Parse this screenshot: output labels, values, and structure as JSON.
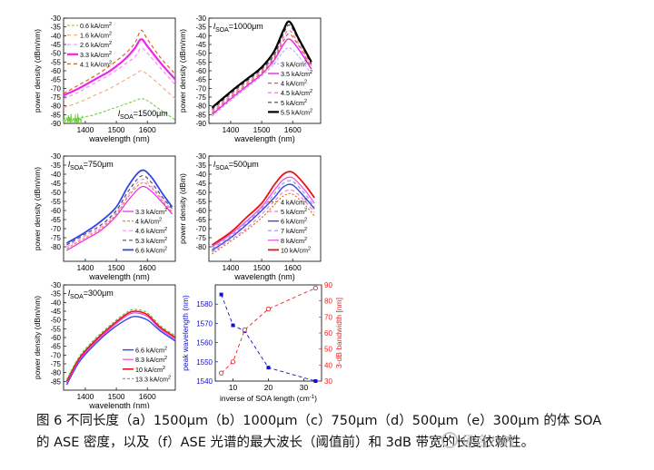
{
  "caption": {
    "line1": "图 6  不同长度（a）1500μm（b）1000μm（c）750μm（d）500μm（e）300μm 的体 SOA",
    "line2": "的 ASE 密度，以及（f）ASE 光谱的最大波长（阈值前）和 3dB 带宽的长度依赖性。"
  },
  "watermark": "见合八方",
  "chart_data": [
    {
      "id": "a",
      "type": "line",
      "label_prefix": "l",
      "label_sub": "SOA",
      "label_suffix": "=1500μm",
      "xlabel": "wavelength (nm)",
      "ylabel": "power density (dBm/nm)",
      "xlim": [
        1330,
        1690
      ],
      "ylim": [
        -90,
        -30
      ],
      "xticks": [
        1400,
        1500,
        1600
      ],
      "yticks": [
        -90,
        -85,
        -80,
        -75,
        -70,
        -65,
        -60,
        -55,
        -50,
        -45,
        -40,
        -35,
        -30
      ],
      "legend": "top-left",
      "series": [
        {
          "name": "0.6 kA/cm",
          "sup": "2",
          "color": "#66cc33",
          "dash": "3,2",
          "width": 1,
          "noisy": true,
          "x": [
            1330,
            1380,
            1430,
            1480,
            1530,
            1560,
            1580,
            1600,
            1640,
            1690
          ],
          "y": [
            -89,
            -87,
            -85,
            -82,
            -79,
            -77,
            -76,
            -77,
            -82,
            -88
          ]
        },
        {
          "name": "1.6 kA/cm",
          "sup": "2",
          "color": "#f2b084",
          "dash": "4,3",
          "width": 1.2,
          "x": [
            1330,
            1380,
            1430,
            1480,
            1530,
            1560,
            1580,
            1600,
            1640,
            1690
          ],
          "y": [
            -81,
            -78,
            -74,
            -70,
            -65,
            -62,
            -60,
            -62,
            -68,
            -76
          ]
        },
        {
          "name": "2.6 kA/cm",
          "sup": "2",
          "color": "#ff88ff",
          "dash": "4,3",
          "width": 1.2,
          "x": [
            1330,
            1380,
            1430,
            1480,
            1530,
            1560,
            1580,
            1600,
            1640,
            1690
          ],
          "y": [
            -76,
            -72,
            -67,
            -62,
            -56,
            -52,
            -47,
            -50,
            -58,
            -68
          ]
        },
        {
          "name": "3.3 kA/cm",
          "sup": "2",
          "color": "#ee22ee",
          "dash": "",
          "width": 2.2,
          "x": [
            1330,
            1380,
            1430,
            1480,
            1530,
            1560,
            1580,
            1600,
            1640,
            1690
          ],
          "y": [
            -74,
            -70,
            -65,
            -60,
            -53,
            -47,
            -42,
            -46,
            -55,
            -65
          ]
        },
        {
          "name": "4.1 kA/cm",
          "sup": "2",
          "color": "#dd6622",
          "dash": "4,3",
          "width": 1.2,
          "x": [
            1330,
            1380,
            1430,
            1480,
            1530,
            1560,
            1580,
            1600,
            1640,
            1690
          ],
          "y": [
            -73,
            -68,
            -63,
            -57,
            -50,
            -44,
            -37,
            -42,
            -52,
            -62
          ]
        }
      ]
    },
    {
      "id": "b",
      "type": "line",
      "label_prefix": "l",
      "label_sub": "SOA",
      "label_suffix": "=1000μm",
      "xlabel": "wavelength (nm)",
      "ylabel": "power density (dBm/nm)",
      "xlim": [
        1330,
        1690
      ],
      "ylim": [
        -90,
        -30
      ],
      "xticks": [
        1400,
        1500,
        1600
      ],
      "yticks": [
        -90,
        -85,
        -80,
        -75,
        -70,
        -65,
        -60,
        -55,
        -50,
        -45,
        -40,
        -35,
        -30
      ],
      "legend": "bottom-right",
      "series": [
        {
          "name": "3 kA/cm",
          "sup": "2",
          "color": "#99aaff",
          "dash": "3,2",
          "width": 1,
          "x": [
            1340,
            1400,
            1450,
            1500,
            1540,
            1570,
            1590,
            1620,
            1660
          ],
          "y": [
            -86,
            -77,
            -70,
            -63,
            -56,
            -49,
            -47,
            -52,
            -62
          ]
        },
        {
          "name": "3.5 kA/cm",
          "sup": "2",
          "color": "#ee22ee",
          "dash": "",
          "width": 1.4,
          "x": [
            1340,
            1400,
            1450,
            1500,
            1540,
            1570,
            1590,
            1620,
            1660
          ],
          "y": [
            -85,
            -76,
            -69,
            -62,
            -54,
            -45,
            -42,
            -48,
            -59
          ]
        },
        {
          "name": "4 kA/cm",
          "sup": "2",
          "color": "#dd6622",
          "dash": "4,3",
          "width": 1.2,
          "x": [
            1340,
            1400,
            1450,
            1500,
            1540,
            1570,
            1590,
            1620,
            1660
          ],
          "y": [
            -84,
            -75,
            -68,
            -61,
            -53,
            -43,
            -39,
            -46,
            -58
          ]
        },
        {
          "name": "4.5 kA/cm",
          "sup": "2",
          "color": "#ff66cc",
          "dash": "4,3",
          "width": 1.2,
          "x": [
            1340,
            1400,
            1450,
            1500,
            1540,
            1570,
            1590,
            1620,
            1660
          ],
          "y": [
            -83,
            -74,
            -67,
            -60,
            -52,
            -41,
            -37,
            -45,
            -57
          ]
        },
        {
          "name": "5 kA/cm",
          "sup": "2",
          "color": "#444444",
          "dash": "4,3",
          "width": 1.2,
          "x": [
            1340,
            1400,
            1450,
            1500,
            1540,
            1570,
            1590,
            1620,
            1660
          ],
          "y": [
            -82,
            -73,
            -66,
            -59,
            -51,
            -39,
            -34,
            -43,
            -56
          ]
        },
        {
          "name": "5.5 kA/cm",
          "sup": "2",
          "color": "#000000",
          "dash": "",
          "width": 2.2,
          "x": [
            1340,
            1400,
            1450,
            1500,
            1540,
            1570,
            1590,
            1620,
            1660
          ],
          "y": [
            -81,
            -72,
            -65,
            -58,
            -49,
            -37,
            -32,
            -42,
            -55
          ]
        }
      ]
    },
    {
      "id": "c",
      "type": "line",
      "label_prefix": "l",
      "label_sub": "SOA",
      "label_suffix": "=750μm",
      "xlabel": "wavelength (nm)",
      "ylabel": "power density (dBm/nm)",
      "xlim": [
        1330,
        1690
      ],
      "ylim": [
        -88,
        -30
      ],
      "xticks": [
        1400,
        1500,
        1600
      ],
      "yticks": [
        -80,
        -75,
        -70,
        -65,
        -60,
        -55,
        -50,
        -45,
        -40,
        -35,
        -30
      ],
      "legend": "bottom-right",
      "series": [
        {
          "name": "3.3 kA/cm",
          "sup": "2",
          "color": "#ee22ee",
          "dash": "",
          "width": 1.2,
          "x": [
            1340,
            1400,
            1450,
            1500,
            1540,
            1580,
            1610,
            1650,
            1680
          ],
          "y": [
            -82,
            -76,
            -71,
            -63,
            -54,
            -47,
            -49,
            -56,
            -62
          ]
        },
        {
          "name": "4 kA/cm",
          "sup": "2",
          "color": "#dd8844",
          "dash": "3,2",
          "width": 1.2,
          "x": [
            1340,
            1400,
            1450,
            1500,
            1540,
            1580,
            1610,
            1650,
            1680
          ],
          "y": [
            -81,
            -75,
            -70,
            -62,
            -52,
            -45,
            -47,
            -55,
            -61
          ]
        },
        {
          "name": "4.6 kA/cm",
          "sup": "2",
          "color": "#ff88ff",
          "dash": "4,3",
          "width": 1.2,
          "x": [
            1340,
            1400,
            1450,
            1500,
            1540,
            1580,
            1610,
            1650,
            1680
          ],
          "y": [
            -80,
            -74,
            -69,
            -61,
            -51,
            -43,
            -46,
            -54,
            -60
          ]
        },
        {
          "name": "5.3 kA/cm",
          "sup": "2",
          "color": "#555555",
          "dash": "4,3",
          "width": 1.2,
          "x": [
            1340,
            1400,
            1450,
            1500,
            1540,
            1580,
            1610,
            1650,
            1680
          ],
          "y": [
            -79,
            -73,
            -68,
            -60,
            -49,
            -41,
            -44,
            -53,
            -59
          ]
        },
        {
          "name": "6.6 kA/cm",
          "sup": "2",
          "color": "#3344ee",
          "dash": "",
          "width": 1.8,
          "x": [
            1340,
            1400,
            1450,
            1500,
            1540,
            1580,
            1610,
            1650,
            1680
          ],
          "y": [
            -78,
            -72,
            -66,
            -58,
            -46,
            -38,
            -41,
            -51,
            -58
          ]
        }
      ]
    },
    {
      "id": "d",
      "type": "line",
      "label_prefix": "l",
      "label_sub": "SOA",
      "label_suffix": "=500μm",
      "xlabel": "wavelength (nm)",
      "ylabel": "power density (dBm)",
      "xlim": [
        1330,
        1690
      ],
      "ylim": [
        -88,
        -30
      ],
      "xticks": [
        1400,
        1500,
        1600
      ],
      "yticks": [
        -80,
        -75,
        -70,
        -65,
        -60,
        -55,
        -50,
        -45,
        -40,
        -35,
        -30
      ],
      "legend": "bottom-right",
      "series": [
        {
          "name": "4 kA/cm",
          "sup": "2",
          "color": "#cc7722",
          "dash": "2,2",
          "width": 1.2,
          "x": [
            1340,
            1400,
            1450,
            1500,
            1540,
            1570,
            1600,
            1640,
            1670
          ],
          "y": [
            -84,
            -77,
            -71,
            -64,
            -57,
            -52,
            -51,
            -57,
            -63
          ]
        },
        {
          "name": "5 kA/cm",
          "sup": "2",
          "color": "#ff77cc",
          "dash": "4,3",
          "width": 1.2,
          "x": [
            1340,
            1400,
            1450,
            1500,
            1540,
            1570,
            1600,
            1640,
            1670
          ],
          "y": [
            -83,
            -76,
            -70,
            -62,
            -55,
            -50,
            -49,
            -55,
            -61
          ]
        },
        {
          "name": "6 kA/cm",
          "sup": "2",
          "color": "#3344ee",
          "dash": "",
          "width": 1.4,
          "x": [
            1340,
            1400,
            1450,
            1500,
            1540,
            1570,
            1600,
            1640,
            1670
          ],
          "y": [
            -82,
            -75,
            -68,
            -60,
            -53,
            -47,
            -46,
            -53,
            -59
          ]
        },
        {
          "name": "7 kA/cm",
          "sup": "2",
          "color": "#9999ee",
          "dash": "4,3",
          "width": 1.2,
          "x": [
            1340,
            1400,
            1450,
            1500,
            1540,
            1570,
            1600,
            1640,
            1670
          ],
          "y": [
            -81,
            -74,
            -67,
            -59,
            -51,
            -45,
            -44,
            -51,
            -58
          ]
        },
        {
          "name": "8 kA/cm",
          "sup": "2",
          "color": "#ee44ee",
          "dash": "",
          "width": 1.2,
          "x": [
            1340,
            1400,
            1450,
            1500,
            1540,
            1570,
            1600,
            1640,
            1670
          ],
          "y": [
            -80,
            -73,
            -66,
            -58,
            -49,
            -43,
            -42,
            -49,
            -56
          ]
        },
        {
          "name": "10 kA/cm",
          "sup": "2",
          "color": "#ee1111",
          "dash": "",
          "width": 1.8,
          "x": [
            1340,
            1400,
            1450,
            1500,
            1540,
            1570,
            1600,
            1640,
            1670
          ],
          "y": [
            -79,
            -72,
            -64,
            -56,
            -46,
            -40,
            -39,
            -46,
            -53
          ]
        }
      ]
    },
    {
      "id": "e",
      "type": "line",
      "label_prefix": "l",
      "label_sub": "SOA",
      "label_suffix": "=300μm",
      "xlabel": "wavelength (nm)",
      "ylabel": "power density (dBm/nm)",
      "xlim": [
        1330,
        1690
      ],
      "ylim": [
        -90,
        -30
      ],
      "xticks": [
        1400,
        1500,
        1600
      ],
      "yticks": [
        -85,
        -80,
        -75,
        -70,
        -65,
        -60,
        -55,
        -50,
        -45,
        -40,
        -35,
        -30
      ],
      "legend": "bottom-right",
      "series": [
        {
          "name": "6.6 kA/cm",
          "sup": "2",
          "color": "#3344ee",
          "dash": "",
          "width": 1.4,
          "x": [
            1340,
            1380,
            1430,
            1480,
            1530,
            1560,
            1600,
            1640,
            1690
          ],
          "y": [
            -87,
            -74,
            -64,
            -56,
            -50,
            -48,
            -50,
            -56,
            -62
          ]
        },
        {
          "name": "8.3 kA/cm",
          "sup": "2",
          "color": "#ee44ee",
          "dash": "",
          "width": 1.2,
          "x": [
            1340,
            1380,
            1430,
            1480,
            1530,
            1560,
            1600,
            1640,
            1690
          ],
          "y": [
            -86,
            -73,
            -63,
            -55,
            -48,
            -46,
            -48,
            -55,
            -61
          ]
        },
        {
          "name": "10 kA/cm",
          "sup": "2",
          "color": "#ee1111",
          "dash": "",
          "width": 1.6,
          "x": [
            1340,
            1380,
            1430,
            1480,
            1530,
            1560,
            1600,
            1640,
            1690
          ],
          "y": [
            -85,
            -72,
            -62,
            -54,
            -47,
            -45,
            -47,
            -54,
            -60
          ]
        },
        {
          "name": "13.3 kA/cm",
          "sup": "2",
          "color": "#66bb44",
          "dash": "3,2",
          "width": 1.2,
          "x": [
            1340,
            1380,
            1430,
            1480,
            1530,
            1560,
            1600,
            1640,
            1690
          ],
          "y": [
            -84,
            -71,
            -61,
            -53,
            -46,
            -44,
            -46,
            -53,
            -59
          ]
        }
      ]
    },
    {
      "id": "f",
      "type": "scatter",
      "xlabel": "inverse of SOA length (cm",
      "xlabel_sup": "-1",
      "xlabel_tail": ")",
      "xlim": [
        5,
        35
      ],
      "xticks": [
        10,
        20,
        30
      ],
      "left_axis": {
        "label": "peak wavelength (nm)",
        "color": "#1111cc",
        "ylim": [
          1540,
          1590
        ],
        "yticks": [
          1540,
          1550,
          1560,
          1570,
          1580
        ]
      },
      "right_axis": {
        "label": "3-dB bandwidth [nm]",
        "color": "#ee2222",
        "ylim": [
          30,
          90
        ],
        "yticks": [
          30,
          40,
          50,
          60,
          70,
          80,
          90
        ]
      },
      "series": [
        {
          "name": "peak wavelength",
          "axis": "left",
          "marker": "square",
          "color": "#1111cc",
          "x": [
            6.7,
            10,
            13.3,
            20,
            33.3
          ],
          "y": [
            1585,
            1569,
            1566,
            1547,
            1540
          ]
        },
        {
          "name": "3-dB bandwidth",
          "axis": "right",
          "marker": "circle",
          "color": "#ee2222",
          "x": [
            6.7,
            10,
            13.3,
            20,
            33.3
          ],
          "y": [
            35,
            42,
            62,
            75,
            88
          ]
        }
      ]
    }
  ]
}
